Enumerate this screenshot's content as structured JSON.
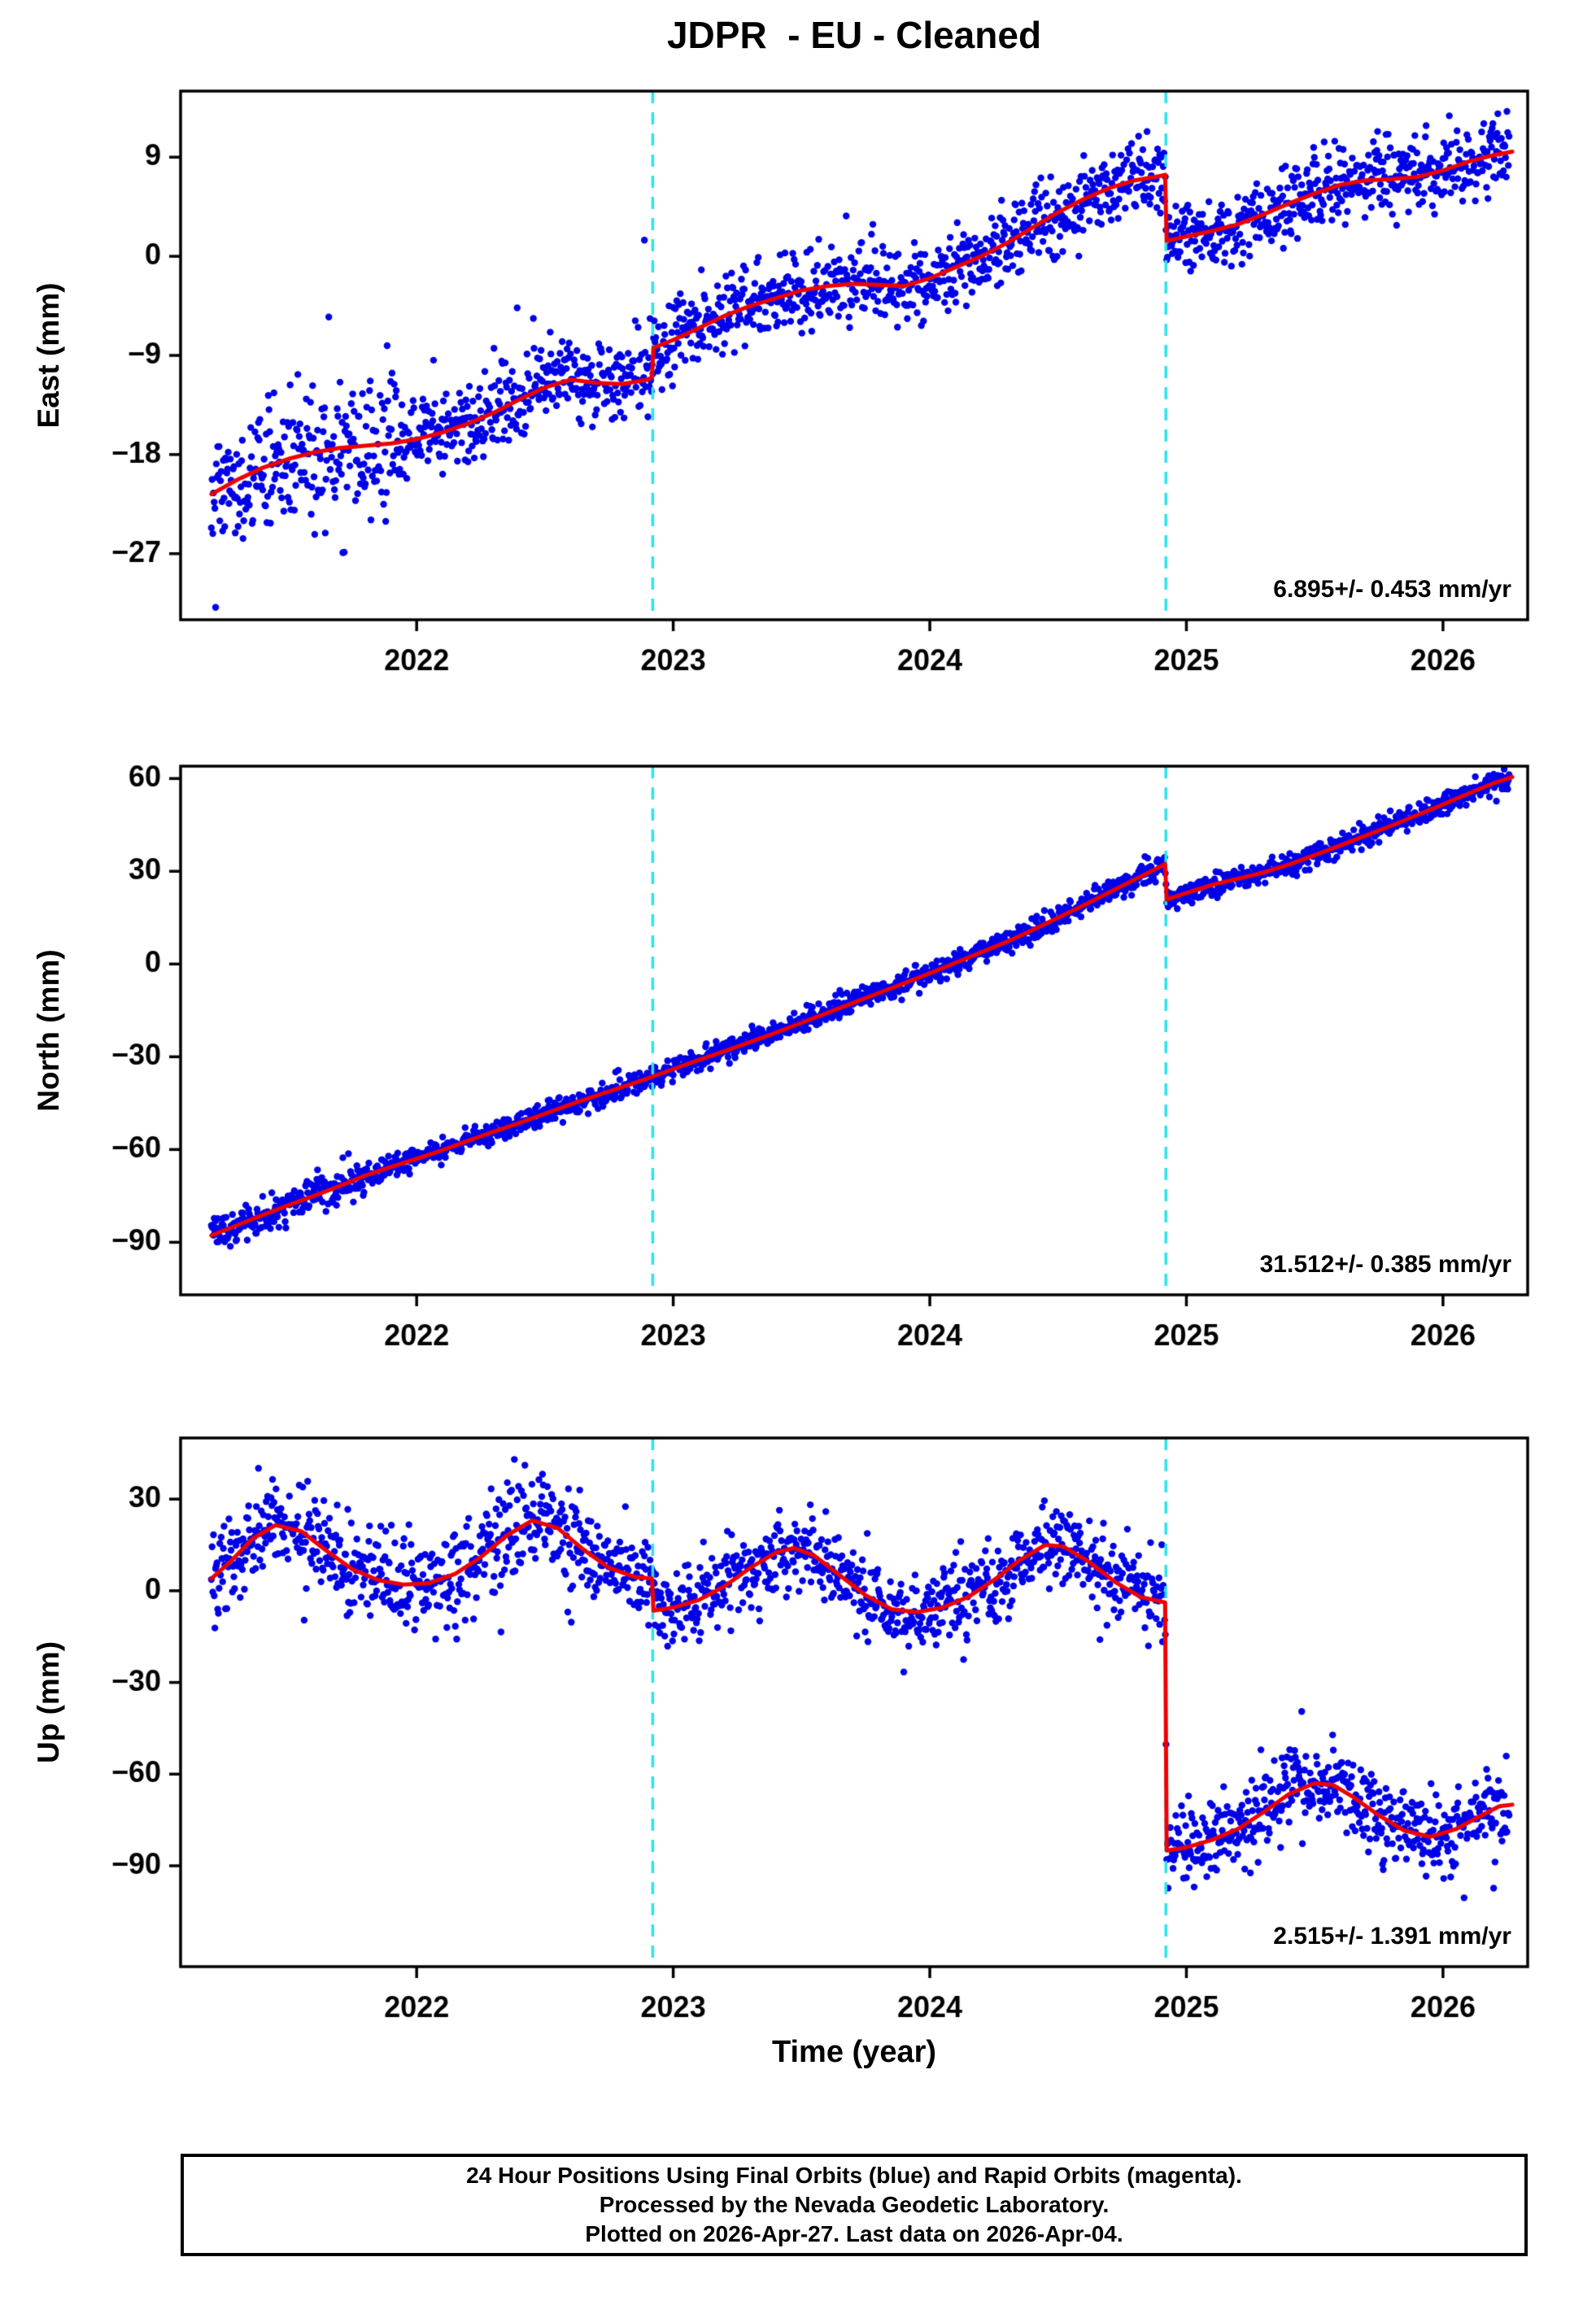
{
  "title": "JDPR  - EU - Cleaned",
  "xlabel": "Time (year)",
  "caption": {
    "lines": [
      "24 Hour Positions Using Final Orbits (blue) and Rapid Orbits (magenta).",
      "Processed by the Nevada Geodetic Laboratory.",
      "Plotted on 2026-Apr-27. Last data on 2026-Apr-04."
    ]
  },
  "chart_data": {
    "type": "scatter",
    "title": "JDPR  - EU - Cleaned",
    "xlabel": "Time (year)",
    "xlim": [
      2021.08,
      2026.33
    ],
    "x_ticks": [
      2022,
      2023,
      2024,
      2025,
      2026
    ],
    "step_lines_x": [
      2022.92,
      2024.92
    ],
    "data_span": [
      2021.2,
      2026.26
    ],
    "style": {
      "point_color": "#0000e8",
      "model_color": "#ee0000",
      "step_line_color": "#2ee3ea",
      "axis_color": "#000000",
      "point_radius": 4.2,
      "seed": 42
    },
    "panels": [
      {
        "name": "East",
        "ylabel": "East (mm)",
        "ylim": [
          -33,
          15
        ],
        "yticks": [
          9,
          0,
          -9,
          -18,
          -27
        ],
        "rate_label": "6.895+/- 0.453 mm/yr",
        "noise": {
          "sigma": 1.8,
          "early_sigma": 3.2,
          "early_until": 2021.95,
          "outlier_rate": 0.05,
          "outlier_sigma": 6.0,
          "outlier_until": 2022.95
        },
        "model": [
          [
            2021.2,
            -21.6
          ],
          [
            2021.3,
            -20.3
          ],
          [
            2021.4,
            -19.2
          ],
          [
            2021.5,
            -18.4
          ],
          [
            2021.6,
            -17.8
          ],
          [
            2021.7,
            -17.4
          ],
          [
            2021.8,
            -17.2
          ],
          [
            2021.9,
            -17.0
          ],
          [
            2022.0,
            -16.6
          ],
          [
            2022.1,
            -16.0
          ],
          [
            2022.2,
            -15.2
          ],
          [
            2022.3,
            -14.2
          ],
          [
            2022.4,
            -13.0
          ],
          [
            2022.5,
            -11.9
          ],
          [
            2022.6,
            -11.2
          ],
          [
            2022.7,
            -11.5
          ],
          [
            2022.8,
            -11.6
          ],
          [
            2022.9,
            -11.2
          ],
          [
            2022.917,
            -11.0
          ],
          [
            2022.923,
            -8.3
          ],
          [
            2023.0,
            -7.6
          ],
          [
            2023.1,
            -6.5
          ],
          [
            2023.2,
            -5.4
          ],
          [
            2023.3,
            -4.5
          ],
          [
            2023.4,
            -3.8
          ],
          [
            2023.5,
            -3.1
          ],
          [
            2023.6,
            -2.7
          ],
          [
            2023.7,
            -2.5
          ],
          [
            2023.8,
            -2.6
          ],
          [
            2023.9,
            -2.7
          ],
          [
            2024.0,
            -2.0
          ],
          [
            2024.1,
            -1.0
          ],
          [
            2024.2,
            0.0
          ],
          [
            2024.3,
            1.2
          ],
          [
            2024.4,
            2.6
          ],
          [
            2024.5,
            4.0
          ],
          [
            2024.6,
            5.2
          ],
          [
            2024.7,
            6.2
          ],
          [
            2024.8,
            6.9
          ],
          [
            2024.9,
            7.3
          ],
          [
            2024.917,
            7.4
          ],
          [
            2024.923,
            1.4
          ],
          [
            2025.0,
            1.8
          ],
          [
            2025.1,
            2.3
          ],
          [
            2025.2,
            2.9
          ],
          [
            2025.3,
            3.8
          ],
          [
            2025.4,
            4.8
          ],
          [
            2025.5,
            5.7
          ],
          [
            2025.6,
            6.5
          ],
          [
            2025.7,
            6.9
          ],
          [
            2025.8,
            7.0
          ],
          [
            2025.9,
            7.2
          ],
          [
            2026.0,
            7.8
          ],
          [
            2026.1,
            8.6
          ],
          [
            2026.2,
            9.2
          ],
          [
            2026.27,
            9.5
          ]
        ]
      },
      {
        "name": "North",
        "ylabel": "North (mm)",
        "ylim": [
          -107,
          64
        ],
        "yticks": [
          60,
          30,
          0,
          -30,
          -60,
          -90
        ],
        "rate_label": "31.512+/- 0.385 mm/yr",
        "noise": {
          "sigma": 1.8,
          "early_sigma": 2.6,
          "early_until": 2021.8,
          "outlier_rate": 0.03,
          "outlier_sigma": 6.0,
          "outlier_until": 2022.3
        },
        "model": [
          [
            2021.2,
            -87.8
          ],
          [
            2021.3,
            -84.5
          ],
          [
            2021.4,
            -81.2
          ],
          [
            2021.5,
            -78.0
          ],
          [
            2021.6,
            -75.0
          ],
          [
            2021.7,
            -71.8
          ],
          [
            2021.8,
            -68.4
          ],
          [
            2021.9,
            -65.6
          ],
          [
            2022.0,
            -63.0
          ],
          [
            2022.1,
            -60.2
          ],
          [
            2022.2,
            -57.2
          ],
          [
            2022.3,
            -54.2
          ],
          [
            2022.4,
            -51.4
          ],
          [
            2022.5,
            -48.4
          ],
          [
            2022.6,
            -45.4
          ],
          [
            2022.7,
            -42.6
          ],
          [
            2022.8,
            -39.8
          ],
          [
            2022.9,
            -37.0
          ],
          [
            2023.0,
            -34.0
          ],
          [
            2023.1,
            -31.0
          ],
          [
            2023.2,
            -28.2
          ],
          [
            2023.3,
            -25.2
          ],
          [
            2023.4,
            -22.2
          ],
          [
            2023.5,
            -19.0
          ],
          [
            2023.6,
            -15.8
          ],
          [
            2023.7,
            -12.6
          ],
          [
            2023.8,
            -9.4
          ],
          [
            2023.9,
            -6.2
          ],
          [
            2024.0,
            -3.0
          ],
          [
            2024.1,
            0.4
          ],
          [
            2024.2,
            3.8
          ],
          [
            2024.3,
            7.2
          ],
          [
            2024.4,
            11.0
          ],
          [
            2024.5,
            15.0
          ],
          [
            2024.6,
            19.0
          ],
          [
            2024.7,
            23.2
          ],
          [
            2024.8,
            27.4
          ],
          [
            2024.9,
            31.6
          ],
          [
            2024.917,
            32.4
          ],
          [
            2024.923,
            20.8
          ],
          [
            2025.0,
            23.0
          ],
          [
            2025.1,
            25.6
          ],
          [
            2025.2,
            27.6
          ],
          [
            2025.3,
            29.6
          ],
          [
            2025.4,
            32.2
          ],
          [
            2025.5,
            35.2
          ],
          [
            2025.6,
            38.4
          ],
          [
            2025.7,
            41.6
          ],
          [
            2025.8,
            44.8
          ],
          [
            2025.9,
            48.2
          ],
          [
            2026.0,
            51.6
          ],
          [
            2026.1,
            55.2
          ],
          [
            2026.2,
            58.6
          ],
          [
            2026.27,
            60.5
          ]
        ]
      },
      {
        "name": "Up",
        "ylabel": "Up (mm)",
        "ylim": [
          -123,
          50
        ],
        "yticks": [
          30,
          0,
          -30,
          -60,
          -90
        ],
        "rate_label": "2.515+/- 1.391 mm/yr",
        "noise": {
          "sigma": 6.5,
          "early_sigma": 8.0,
          "early_until": 2022.7,
          "outlier_rate": 0.015,
          "outlier_sigma": 13.0,
          "outlier_until": 2026.33
        },
        "model": [
          [
            2021.2,
            4.0
          ],
          [
            2021.28,
            10.0
          ],
          [
            2021.36,
            17.0
          ],
          [
            2021.45,
            21.5
          ],
          [
            2021.55,
            19.5
          ],
          [
            2021.65,
            13.0
          ],
          [
            2021.75,
            7.0
          ],
          [
            2021.85,
            3.5
          ],
          [
            2021.95,
            2.0
          ],
          [
            2022.05,
            2.5
          ],
          [
            2022.15,
            5.5
          ],
          [
            2022.25,
            11.0
          ],
          [
            2022.35,
            18.0
          ],
          [
            2022.45,
            23.0
          ],
          [
            2022.55,
            20.5
          ],
          [
            2022.65,
            13.5
          ],
          [
            2022.75,
            7.5
          ],
          [
            2022.85,
            4.5
          ],
          [
            2022.917,
            4.0
          ],
          [
            2022.923,
            -6.5
          ],
          [
            2023.0,
            -5.5
          ],
          [
            2023.1,
            -3.0
          ],
          [
            2023.2,
            1.5
          ],
          [
            2023.3,
            7.5
          ],
          [
            2023.4,
            12.5
          ],
          [
            2023.47,
            14.0
          ],
          [
            2023.55,
            11.5
          ],
          [
            2023.65,
            5.0
          ],
          [
            2023.75,
            -1.5
          ],
          [
            2023.85,
            -6.0
          ],
          [
            2023.95,
            -7.0
          ],
          [
            2024.05,
            -5.5
          ],
          [
            2024.15,
            -2.0
          ],
          [
            2024.25,
            3.5
          ],
          [
            2024.35,
            10.0
          ],
          [
            2024.45,
            15.0
          ],
          [
            2024.52,
            14.5
          ],
          [
            2024.62,
            9.5
          ],
          [
            2024.72,
            3.0
          ],
          [
            2024.82,
            -2.0
          ],
          [
            2024.9,
            -3.5
          ],
          [
            2024.917,
            -3.8
          ],
          [
            2024.923,
            -85.0
          ],
          [
            2025.0,
            -84.0
          ],
          [
            2025.1,
            -81.5
          ],
          [
            2025.2,
            -78.0
          ],
          [
            2025.3,
            -72.5
          ],
          [
            2025.4,
            -66.5
          ],
          [
            2025.5,
            -63.0
          ],
          [
            2025.57,
            -63.5
          ],
          [
            2025.65,
            -67.5
          ],
          [
            2025.75,
            -73.5
          ],
          [
            2025.85,
            -78.5
          ],
          [
            2025.95,
            -80.5
          ],
          [
            2026.05,
            -78.0
          ],
          [
            2026.15,
            -73.5
          ],
          [
            2026.22,
            -70.5
          ],
          [
            2026.27,
            -70.0
          ]
        ]
      }
    ]
  }
}
